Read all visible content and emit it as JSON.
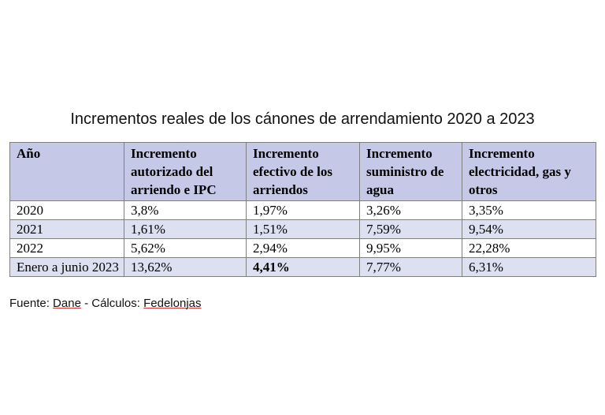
{
  "title": "Incrementos reales de los cánones de arrendamiento 2020 a 2023",
  "table": {
    "headers": [
      "Año",
      "Incremento autorizado del arriendo e IPC",
      "Incremento efectivo de los arriendos",
      "Incremento suministro de agua",
      "Incremento electricidad, gas y otros"
    ],
    "rows": [
      [
        "2020",
        "3,8%",
        "1,97%",
        "3,26%",
        "3,35%"
      ],
      [
        "2021",
        "1,61%",
        "1,51%",
        "7,59%",
        "9,54%"
      ],
      [
        "2022",
        "5,62%",
        "2,94%",
        "9,95%",
        "22,28%"
      ],
      [
        "Enero a junio 2023",
        "13,62%",
        "4,41%",
        "7,77%",
        "6,31%"
      ]
    ]
  },
  "source": {
    "prefix": "Fuente: ",
    "org1": "Dane",
    "middle": " - Cálculos: ",
    "org2": "Fedelonjas"
  },
  "colors": {
    "header_bg": "#c5c9e7",
    "shaded_row_bg": "#dde0f0",
    "border": "#7f7f7f"
  }
}
